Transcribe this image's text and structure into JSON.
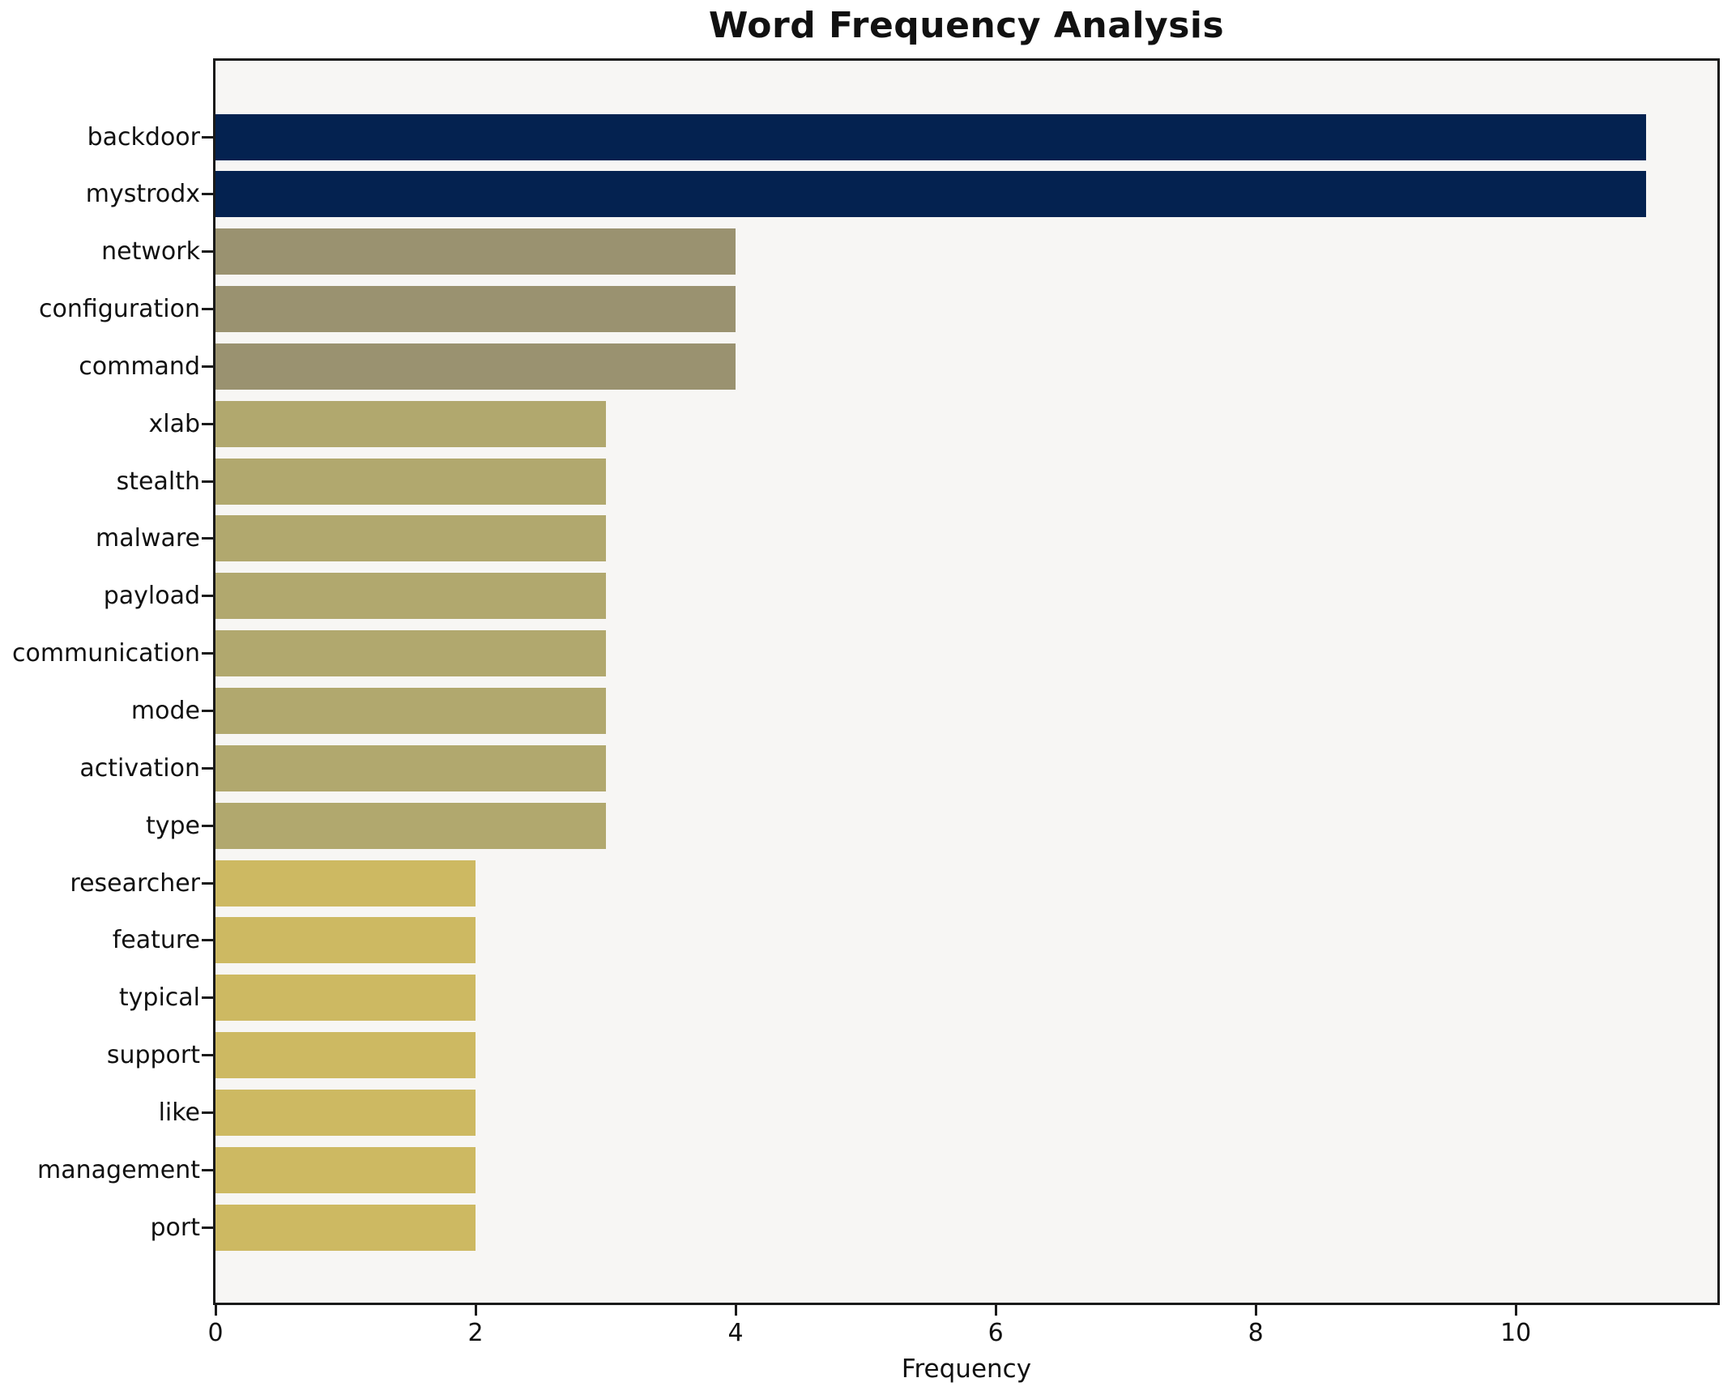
{
  "chart_data": {
    "type": "bar",
    "orientation": "horizontal",
    "title": "Word Frequency Analysis",
    "xlabel": "Frequency",
    "ylabel": "",
    "categories": [
      "backdoor",
      "mystrodx",
      "network",
      "configuration",
      "command",
      "xlab",
      "stealth",
      "malware",
      "payload",
      "communication",
      "mode",
      "activation",
      "type",
      "researcher",
      "feature",
      "typical",
      "support",
      "like",
      "management",
      "port"
    ],
    "values": [
      11,
      11,
      4,
      4,
      4,
      3,
      3,
      3,
      3,
      3,
      3,
      3,
      3,
      2,
      2,
      2,
      2,
      2,
      2,
      2
    ],
    "xlim": [
      0,
      11.55
    ],
    "xticks": [
      0,
      2,
      4,
      6,
      8,
      10
    ],
    "grid": false,
    "legend": "none",
    "colors_by_value": {
      "11": "#042250",
      "4": "#9a9270",
      "3": "#b1a86e",
      "2": "#cdb962"
    },
    "plot_background": "#f7f6f4",
    "figure_background": "#ffffff",
    "axis_color": "#1a1a1a"
  }
}
